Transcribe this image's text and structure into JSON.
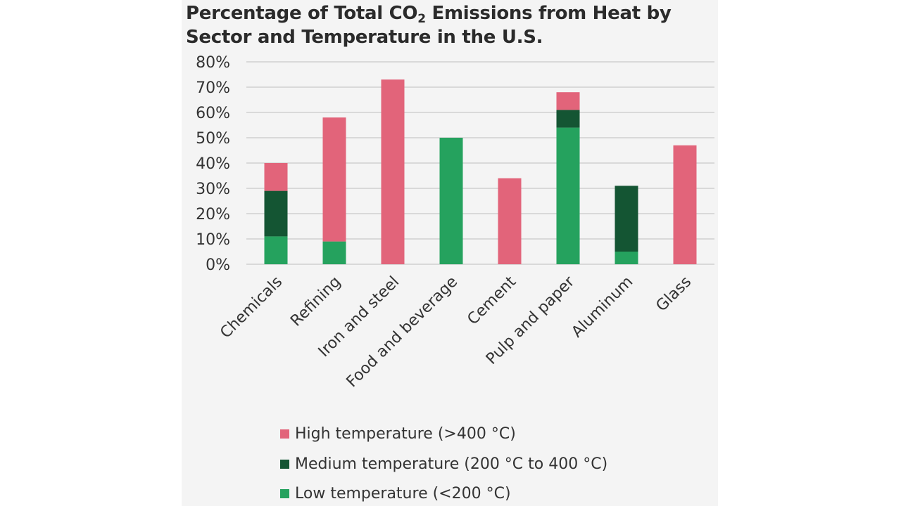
{
  "chart_data": {
    "type": "bar",
    "stacked": true,
    "title_parts": [
      "Percentage of Total CO",
      "2",
      " Emissions from Heat by",
      "Sector and Temperature in the U.S."
    ],
    "xlabel": "",
    "ylabel": "",
    "ylim": [
      0,
      80
    ],
    "yticks": [
      "0%",
      "10%",
      "20%",
      "30%",
      "40%",
      "50%",
      "60%",
      "70%",
      "80%"
    ],
    "grid": true,
    "legend_position": "bottom",
    "categories": [
      "Chemicals",
      "Refining",
      "Iron and steel",
      "Food and beverage",
      "Cement",
      "Pulp and paper",
      "Aluminum",
      "Glass"
    ],
    "series": [
      {
        "name": "Low temperature (<200 °C)",
        "color": "#25a25e",
        "values": [
          11,
          9,
          0,
          50,
          0,
          54,
          5,
          0
        ]
      },
      {
        "name": "Medium temperature (200 °C to 400 °C)",
        "color": "#145533",
        "values": [
          18,
          0,
          0,
          0,
          0,
          7,
          26,
          0
        ]
      },
      {
        "name": "High temperature (>400 °C)",
        "color": "#e2647a",
        "values": [
          11,
          49,
          73,
          0,
          34,
          7,
          0,
          47
        ]
      }
    ],
    "legend_order": [
      2,
      1,
      0
    ]
  }
}
